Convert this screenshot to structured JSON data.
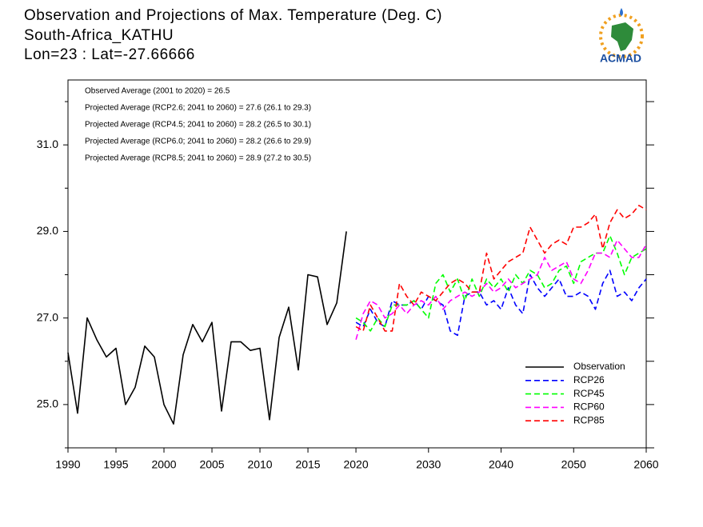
{
  "chart_data": {
    "type": "line",
    "title": [
      "Observation and Projections of Max. Temperature (Deg. C)",
      "South-Africa_KATHU",
      "Lon=23 : Lat=-27.66666"
    ],
    "annotations": [
      "Observed Average (2001 to 2020) = 26.5",
      "Projected Average (RCP2.6; 2041 to 2060) = 27.6 (26.1 to 29.3)",
      "Projected Average (RCP4.5; 2041 to 2060) = 28.2 (26.5 to 30.1)",
      "Projected Average (RCP6.0; 2041 to 2060) = 28.2 (26.6 to 29.9)",
      "Projected Average (RCP8.5; 2041 to 2060) = 28.9 (27.2 to 30.5)"
    ],
    "logo": "ACMAD",
    "x": [
      1990,
      1991,
      1992,
      1993,
      1994,
      1995,
      1996,
      1997,
      1998,
      1999,
      2000,
      2001,
      2002,
      2003,
      2004,
      2005,
      2006,
      2007,
      2008,
      2009,
      2010,
      2011,
      2012,
      2013,
      2014,
      2015,
      2016,
      2017,
      2018,
      2019,
      2020,
      2021,
      2022,
      2023,
      2024,
      2025,
      2026,
      2027,
      2028,
      2029,
      2030,
      2031,
      2032,
      2033,
      2034,
      2035,
      2036,
      2037,
      2038,
      2039,
      2040,
      2041,
      2042,
      2043,
      2044,
      2045,
      2046,
      2047,
      2048,
      2049,
      2050,
      2051,
      2052,
      2053,
      2054,
      2055,
      2056,
      2057,
      2058,
      2059,
      2060
    ],
    "series": [
      {
        "name": "Observation",
        "color": "#000000",
        "dashed": false,
        "values": [
          26.2,
          24.8,
          27.0,
          26.5,
          26.1,
          26.3,
          25.0,
          25.4,
          26.35,
          26.1,
          25.0,
          24.55,
          26.15,
          26.85,
          26.45,
          26.9,
          24.85,
          26.45,
          26.45,
          26.25,
          26.3,
          24.65,
          26.55,
          27.25,
          25.8,
          28.0,
          27.95,
          26.85,
          27.35,
          29.0,
          null,
          null,
          null,
          null,
          null,
          null,
          null,
          null,
          null,
          null,
          null,
          null,
          null,
          null,
          null,
          null,
          null,
          null,
          null,
          null,
          null,
          null,
          null,
          null,
          null,
          null,
          null,
          null,
          null,
          null,
          null,
          null,
          null,
          null,
          null,
          null,
          null,
          null,
          null,
          null,
          null
        ]
      },
      {
        "name": "RCP26",
        "color": "#0000ff",
        "dashed": true,
        "values": [
          null,
          null,
          null,
          null,
          null,
          null,
          null,
          null,
          null,
          null,
          null,
          null,
          null,
          null,
          null,
          null,
          null,
          null,
          null,
          null,
          null,
          null,
          null,
          null,
          null,
          null,
          null,
          null,
          null,
          null,
          26.9,
          26.8,
          27.2,
          26.9,
          26.8,
          27.4,
          27.3,
          27.3,
          27.4,
          27.2,
          27.5,
          27.4,
          27.3,
          26.7,
          26.6,
          27.5,
          27.6,
          27.6,
          27.3,
          27.4,
          27.2,
          27.7,
          27.3,
          27.1,
          28.0,
          27.7,
          27.5,
          27.7,
          27.9,
          27.5,
          27.5,
          27.6,
          27.5,
          27.2,
          27.8,
          28.1,
          27.5,
          27.6,
          27.4,
          27.7,
          27.9
        ]
      },
      {
        "name": "RCP45",
        "color": "#00ff00",
        "dashed": true,
        "values": [
          null,
          null,
          null,
          null,
          null,
          null,
          null,
          null,
          null,
          null,
          null,
          null,
          null,
          null,
          null,
          null,
          null,
          null,
          null,
          null,
          null,
          null,
          null,
          null,
          null,
          null,
          null,
          null,
          null,
          null,
          27.0,
          26.9,
          26.7,
          27.0,
          26.8,
          27.3,
          27.3,
          27.3,
          27.4,
          27.2,
          27.0,
          27.8,
          28.0,
          27.6,
          27.9,
          27.4,
          27.9,
          27.5,
          27.9,
          27.7,
          27.9,
          27.6,
          28.0,
          27.8,
          28.1,
          28.0,
          27.7,
          27.8,
          28.1,
          28.2,
          27.8,
          28.3,
          28.4,
          28.5,
          28.5,
          28.9,
          28.5,
          28.0,
          28.4,
          28.5,
          28.6
        ]
      },
      {
        "name": "RCP60",
        "color": "#ff00ff",
        "dashed": true,
        "values": [
          null,
          null,
          null,
          null,
          null,
          null,
          null,
          null,
          null,
          null,
          null,
          null,
          null,
          null,
          null,
          null,
          null,
          null,
          null,
          null,
          null,
          null,
          null,
          null,
          null,
          null,
          null,
          null,
          null,
          null,
          26.5,
          27.1,
          27.4,
          27.3,
          27.0,
          27.1,
          27.3,
          27.1,
          27.3,
          27.4,
          27.3,
          27.5,
          27.2,
          27.4,
          27.5,
          27.6,
          27.5,
          27.6,
          27.8,
          27.6,
          27.7,
          27.9,
          27.7,
          27.8,
          27.9,
          28.0,
          28.4,
          28.1,
          28.2,
          28.3,
          27.9,
          27.8,
          28.1,
          28.5,
          28.5,
          28.4,
          28.8,
          28.6,
          28.4,
          28.4,
          28.7
        ]
      },
      {
        "name": "RCP85",
        "color": "#ff0000",
        "dashed": true,
        "values": [
          null,
          null,
          null,
          null,
          null,
          null,
          null,
          null,
          null,
          null,
          null,
          null,
          null,
          null,
          null,
          null,
          null,
          null,
          null,
          null,
          null,
          null,
          null,
          null,
          null,
          null,
          null,
          null,
          null,
          null,
          26.8,
          26.7,
          27.3,
          27.0,
          26.7,
          26.7,
          27.8,
          27.5,
          27.3,
          27.6,
          27.5,
          27.4,
          27.6,
          27.8,
          27.9,
          27.8,
          27.6,
          27.6,
          28.5,
          27.9,
          28.1,
          28.3,
          28.4,
          28.5,
          29.1,
          28.8,
          28.5,
          28.7,
          28.8,
          28.7,
          29.1,
          29.1,
          29.2,
          29.4,
          28.6,
          29.2,
          29.5,
          29.3,
          29.4,
          29.6,
          29.5
        ]
      }
    ],
    "xlim": [
      1990,
      2060
    ],
    "xticks": [
      1990,
      1995,
      2000,
      2005,
      2010,
      2015,
      2020,
      2030,
      2040,
      2050,
      2060
    ],
    "ylim": [
      24,
      32.5
    ],
    "yticks": [
      {
        "value": 25,
        "label": "25.0"
      },
      {
        "value": 27,
        "label": "27.0"
      },
      {
        "value": 29,
        "label": "29.0"
      },
      {
        "value": 31,
        "label": "31.0"
      }
    ],
    "yminorticks": [
      24,
      26,
      28,
      30,
      32
    ],
    "legend": "lower-right"
  }
}
